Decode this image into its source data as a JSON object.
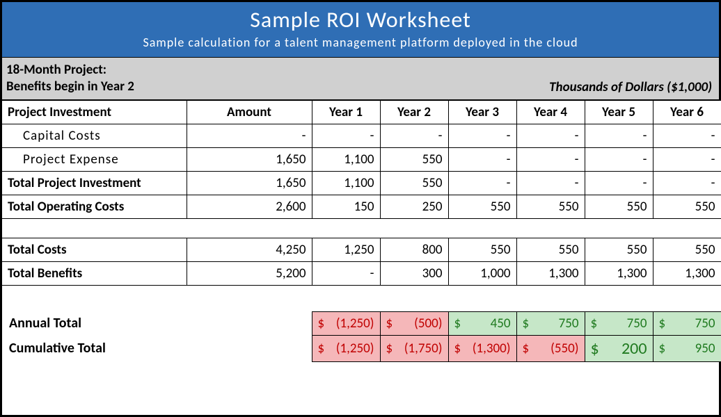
{
  "header": {
    "title": "Sample ROI Worksheet",
    "subtitle": "Sample calculation for a talent management platform deployed in the cloud"
  },
  "subheader": {
    "line1": "18-Month Project:",
    "line2": "Benefits begin in Year 2",
    "right": "Thousands of Dollars ($1,000)"
  },
  "columns": {
    "label": "Project Investment",
    "amount": "Amount",
    "y1": "Year 1",
    "y2": "Year 2",
    "y3": "Year 3",
    "y4": "Year 4",
    "y5": "Year 5",
    "y6": "Year 6"
  },
  "rows": {
    "capital": {
      "label": "Capital Costs",
      "amount": "-",
      "y1": "-",
      "y2": "-",
      "y3": "-",
      "y4": "-",
      "y5": "-",
      "y6": "-"
    },
    "expense": {
      "label": "Project Expense",
      "amount": "1,650",
      "y1": "1,100",
      "y2": "550",
      "y3": "-",
      "y4": "-",
      "y5": "-",
      "y6": "-"
    },
    "totalInv": {
      "label": "Total Project Investment",
      "amount": "1,650",
      "y1": "1,100",
      "y2": "550",
      "y3": "-",
      "y4": "-",
      "y5": "-",
      "y6": "-"
    },
    "opCosts": {
      "label": "Total Operating Costs",
      "amount": "2,600",
      "y1": "150",
      "y2": "250",
      "y3": "550",
      "y4": "550",
      "y5": "550",
      "y6": "550"
    },
    "totalCost": {
      "label": "Total Costs",
      "amount": "4,250",
      "y1": "1,250",
      "y2": "800",
      "y3": "550",
      "y4": "550",
      "y5": "550",
      "y6": "550"
    },
    "benefits": {
      "label": "Total Benefits",
      "amount": "5,200",
      "y1": "-",
      "y2": "300",
      "y3": "1,000",
      "y4": "1,300",
      "y5": "1,300",
      "y6": "1,300"
    }
  },
  "totals": {
    "annual": {
      "label": "Annual Total",
      "cells": [
        {
          "pfx": "$",
          "val": "(1,250)",
          "cls": "neg"
        },
        {
          "pfx": "$",
          "val": "(500)",
          "cls": "neg"
        },
        {
          "pfx": "$",
          "val": "450",
          "cls": "pos"
        },
        {
          "pfx": "$",
          "val": "750",
          "cls": "pos"
        },
        {
          "pfx": "$",
          "val": "750",
          "cls": "pos"
        },
        {
          "pfx": "$",
          "val": "750",
          "cls": "pos"
        }
      ]
    },
    "cumulative": {
      "label": "Cumulative Total",
      "cells": [
        {
          "pfx": "$",
          "val": "(1,250)",
          "cls": "neg"
        },
        {
          "pfx": "$",
          "val": "(1,750)",
          "cls": "neg"
        },
        {
          "pfx": "$",
          "val": "(1,300)",
          "cls": "neg"
        },
        {
          "pfx": "$",
          "val": "(550)",
          "cls": "neg"
        },
        {
          "pfx": "$",
          "val": "200",
          "cls": "pos bigpos"
        },
        {
          "pfx": "$",
          "val": "950",
          "cls": "pos"
        }
      ]
    }
  },
  "colors": {
    "headerBg": "#2f6eb5",
    "subheadBg": "#d0d0d0",
    "negBg": "#f5b7b9",
    "negText": "#c00000",
    "posBg": "#c6e7c8",
    "posText": "#1f7a1f",
    "border": "#000000"
  }
}
